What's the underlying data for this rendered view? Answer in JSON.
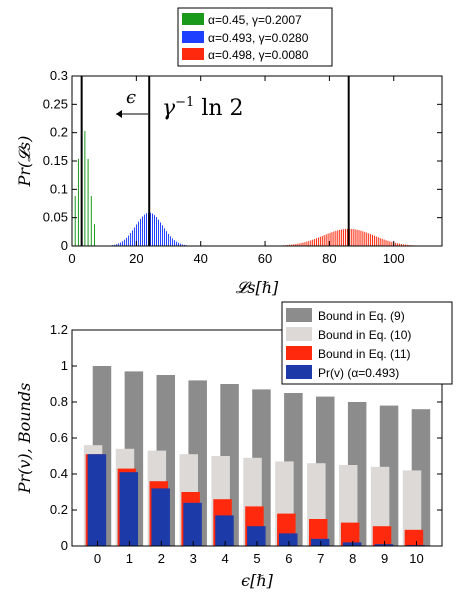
{
  "chart_data": [
    {
      "type": "bar",
      "xlabel": "𝓛s[ℏ]",
      "ylabel": "Pr(𝓛s)",
      "xlim": [
        0,
        115
      ],
      "ylim": [
        0,
        0.3
      ],
      "xticks": [
        "0",
        "20",
        "40",
        "60",
        "80",
        "100"
      ],
      "yticks": [
        "0",
        "0.05",
        "0.1",
        "0.15",
        "0.2",
        "0.25",
        "0.3"
      ],
      "grid": false,
      "legend": {
        "placement": "above-plot",
        "entries": [
          {
            "alpha": "α=0.45",
            "gamma": "γ=0.2007",
            "color": "#1a9a1a"
          },
          {
            "alpha": "α=0.493",
            "gamma": "γ=0.0280",
            "color": "#1f3fff"
          },
          {
            "alpha": "α=0.498",
            "gamma": "γ=0.0080",
            "color": "#ff2a0e"
          }
        ]
      },
      "series": [
        {
          "color": "#1a9a1a",
          "distribution": "discrete",
          "mean": 3.5,
          "sigma": 1.9,
          "step": 1,
          "range": [
            0,
            7
          ]
        },
        {
          "color": "#1f3fff",
          "distribution": "discrete",
          "mean": 24,
          "sigma": 4.2,
          "step": 0.62,
          "range": [
            12,
            36
          ]
        },
        {
          "color": "#ff2a0e",
          "distribution": "discrete",
          "mean": 86,
          "sigma": 7.9,
          "step": 0.6,
          "range": [
            64,
            110
          ]
        }
      ],
      "vertical_lines": [
        3,
        24,
        86
      ],
      "annotations": {
        "epsilon": "ϵ",
        "gamma_label_main": "γ",
        "gamma_label_exp": "−1",
        "gamma_label_tail": " ln 2"
      }
    },
    {
      "type": "bar",
      "xlabel": "ϵ[ℏ]",
      "ylabel": "Pr(v), Bounds",
      "ylim": [
        0,
        1.2
      ],
      "categories": [
        "0",
        "1",
        "2",
        "3",
        "4",
        "5",
        "6",
        "7",
        "8",
        "9",
        "10"
      ],
      "yticks": [
        "0",
        "0.2",
        "0.4",
        "0.6",
        "0.8",
        "1",
        "1.2"
      ],
      "grid": false,
      "legend": {
        "placement": "top-right"
      },
      "series": [
        {
          "name": "Bound in Eq. (9)",
          "color": "#8c8c8c",
          "values": [
            1.0,
            0.97,
            0.95,
            0.92,
            0.9,
            0.87,
            0.85,
            0.83,
            0.8,
            0.78,
            0.76
          ]
        },
        {
          "name": "Bound in Eq. (10)",
          "color": "#ddd9d6",
          "values": [
            0.56,
            0.54,
            0.53,
            0.51,
            0.5,
            0.49,
            0.47,
            0.46,
            0.45,
            0.44,
            0.42
          ]
        },
        {
          "name": "Bound in Eq. (11)",
          "color": "#ff2a0e",
          "values": [
            0.51,
            0.43,
            0.36,
            0.3,
            0.26,
            0.22,
            0.18,
            0.15,
            0.13,
            0.11,
            0.09
          ]
        },
        {
          "name": "Pr(v) (α=0.493)",
          "color": "#1c3aa8",
          "values": [
            0.51,
            0.41,
            0.32,
            0.24,
            0.17,
            0.11,
            0.07,
            0.04,
            0.02,
            0.01,
            0.005
          ]
        }
      ]
    }
  ]
}
